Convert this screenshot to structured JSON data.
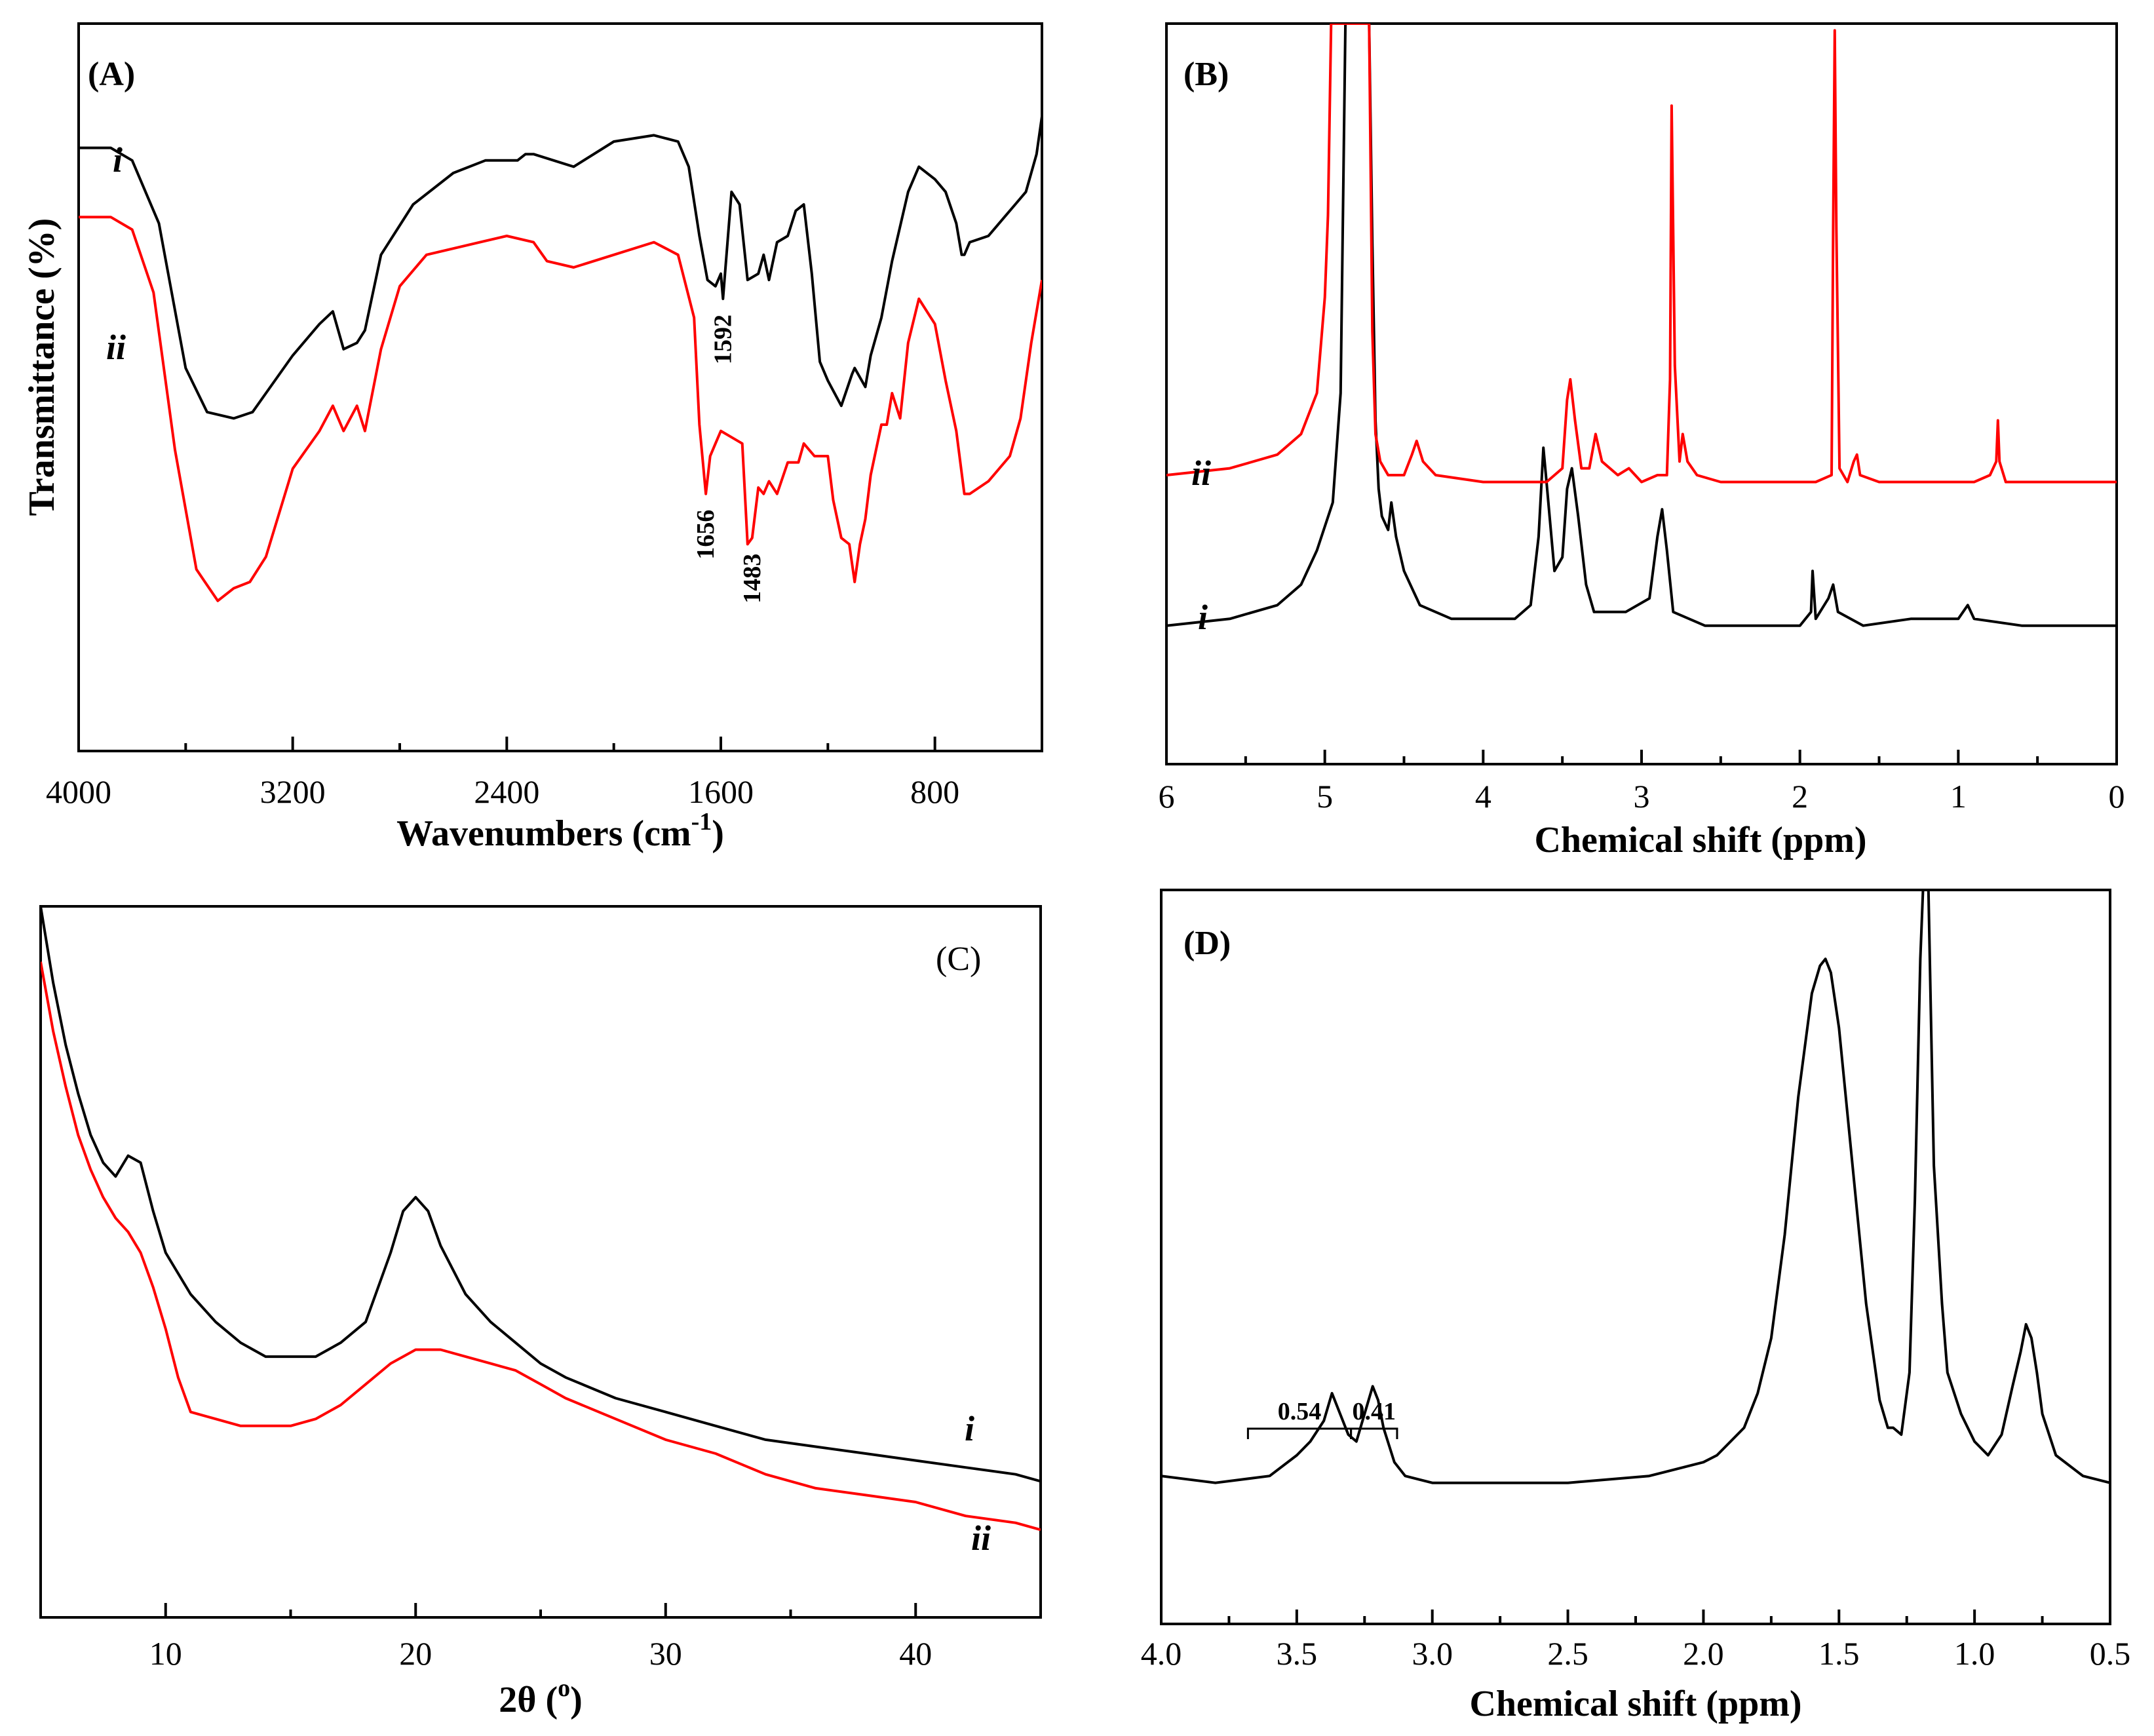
{
  "colors": {
    "series_i": "#000000",
    "series_ii": "#ff0000"
  },
  "chart_data": [
    {
      "id": "A",
      "panel_label": "(A)",
      "type": "line",
      "title": "",
      "xlabel": "Wavenumbers (cm-1)",
      "xlabel_main": "Wavenumbers (cm",
      "xlabel_sup": "-1",
      "xlabel_close": ")",
      "ylabel": "Transmittance (%)",
      "xlim": [
        4000,
        400
      ],
      "ylim": [
        0,
        100
      ],
      "xticks": [
        4000,
        3200,
        2400,
        1600,
        800
      ],
      "xtick_labels": [
        "4000",
        "3200",
        "2400",
        "1600",
        "800"
      ],
      "series": [
        {
          "name": "i",
          "color": "#000000",
          "x": [
            4000,
            3880,
            3800,
            3700,
            3600,
            3520,
            3420,
            3350,
            3300,
            3200,
            3100,
            3050,
            3010,
            2960,
            2930,
            2870,
            2750,
            2600,
            2480,
            2400,
            2360,
            2330,
            2300,
            2150,
            2000,
            1850,
            1760,
            1720,
            1680,
            1650,
            1620,
            1600,
            1592,
            1560,
            1530,
            1500,
            1460,
            1440,
            1420,
            1390,
            1350,
            1320,
            1290,
            1260,
            1230,
            1200,
            1150,
            1110,
            1100,
            1060,
            1040,
            1000,
            960,
            900,
            860,
            800,
            760,
            720,
            700,
            690,
            670,
            600,
            540,
            500,
            460,
            420,
            400
          ],
          "y": [
            89,
            89,
            87,
            77,
            54,
            47,
            46,
            47,
            50,
            56,
            61,
            63,
            57,
            58,
            60,
            72,
            80,
            85,
            87,
            87,
            87,
            88,
            88,
            86,
            90,
            91,
            90,
            86,
            75,
            68,
            67,
            69,
            65,
            82,
            80,
            68,
            69,
            72,
            68,
            74,
            75,
            79,
            80,
            69,
            55,
            52,
            48,
            53,
            54,
            51,
            56,
            62,
            71,
            82,
            86,
            84,
            82,
            77,
            72,
            72,
            74,
            75,
            78,
            80,
            82,
            88,
            94
          ]
        },
        {
          "name": "ii",
          "color": "#ff0000",
          "x": [
            4000,
            3880,
            3800,
            3720,
            3640,
            3560,
            3480,
            3420,
            3360,
            3300,
            3200,
            3100,
            3050,
            3010,
            2960,
            2930,
            2870,
            2800,
            2700,
            2600,
            2500,
            2400,
            2300,
            2250,
            2150,
            2000,
            1850,
            1760,
            1700,
            1680,
            1656,
            1640,
            1620,
            1600,
            1560,
            1520,
            1500,
            1483,
            1460,
            1440,
            1420,
            1390,
            1350,
            1310,
            1290,
            1250,
            1200,
            1180,
            1150,
            1120,
            1100,
            1080,
            1060,
            1040,
            1000,
            980,
            960,
            930,
            900,
            860,
            800,
            760,
            720,
            690,
            670,
            600,
            520,
            480,
            440,
            400
          ],
          "y": [
            78,
            78,
            76,
            66,
            41,
            22,
            17,
            19,
            20,
            24,
            38,
            44,
            48,
            44,
            48,
            44,
            57,
            67,
            72,
            73,
            74,
            75,
            74,
            71,
            70,
            72,
            74,
            72,
            62,
            45,
            34,
            40,
            42,
            44,
            43,
            42,
            26,
            27,
            35,
            34,
            36,
            34,
            39,
            39,
            42,
            40,
            40,
            33,
            27,
            26,
            20,
            26,
            30,
            37,
            45,
            45,
            50,
            46,
            58,
            65,
            61,
            52,
            44,
            34,
            34,
            36,
            40,
            46,
            58,
            68
          ]
        }
      ],
      "annotations": [
        {
          "text": "1592",
          "x": 1592,
          "series": "i"
        },
        {
          "text": "1656",
          "x": 1656,
          "series": "ii"
        },
        {
          "text": "1483",
          "x": 1483,
          "series": "ii"
        }
      ]
    },
    {
      "id": "B",
      "panel_label": "(B)",
      "type": "line",
      "title": "",
      "xlabel": "Chemical shift (ppm)",
      "ylabel": "",
      "xlim": [
        6,
        0
      ],
      "ylim": [
        0,
        100
      ],
      "xticks": [
        6,
        5,
        4,
        3,
        2,
        1,
        0
      ],
      "xtick_labels": [
        "6",
        "5",
        "4",
        "3",
        "2",
        "1",
        "0"
      ],
      "series": [
        {
          "name": "i",
          "color": "#000000",
          "x": [
            6,
            5.6,
            5.3,
            5.15,
            5.05,
            4.95,
            4.9,
            4.87,
            4.85,
            4.82,
            4.78,
            4.75,
            4.72,
            4.7,
            4.68,
            4.66,
            4.64,
            4.6,
            4.58,
            4.55,
            4.5,
            4.4,
            4.2,
            4.0,
            3.8,
            3.7,
            3.65,
            3.62,
            3.6,
            3.55,
            3.5,
            3.47,
            3.44,
            3.4,
            3.35,
            3.3,
            3.1,
            2.95,
            2.9,
            2.87,
            2.84,
            2.8,
            2.6,
            2.3,
            2.0,
            1.93,
            1.92,
            1.9,
            1.82,
            1.79,
            1.76,
            1.6,
            1.3,
            1.0,
            0.94,
            0.9,
            0.6,
            0.3,
            0
          ],
          "y": [
            12,
            13,
            15,
            18,
            23,
            30,
            46,
            100,
            100,
            100,
            100,
            100,
            100,
            68,
            42,
            32,
            28,
            26,
            30,
            25,
            20,
            15,
            13,
            13,
            13,
            15,
            25,
            38,
            33,
            20,
            22,
            32,
            35,
            28,
            18,
            14,
            14,
            16,
            25,
            29,
            23,
            14,
            12,
            12,
            12,
            14,
            20,
            13,
            16,
            18,
            14,
            12,
            13,
            13,
            15,
            13,
            12,
            12,
            12
          ]
        },
        {
          "name": "ii",
          "color": "#ff0000",
          "x": [
            6,
            5.6,
            5.3,
            5.15,
            5.05,
            5.0,
            4.98,
            4.96,
            4.95,
            4.93,
            4.9,
            4.87,
            4.85,
            4.82,
            4.79,
            4.76,
            4.74,
            4.72,
            4.7,
            4.68,
            4.65,
            4.6,
            4.5,
            4.45,
            4.42,
            4.38,
            4.3,
            4.0,
            3.8,
            3.6,
            3.5,
            3.47,
            3.45,
            3.42,
            3.38,
            3.33,
            3.29,
            3.25,
            3.15,
            3.08,
            3.0,
            2.9,
            2.84,
            2.82,
            2.81,
            2.79,
            2.76,
            2.74,
            2.71,
            2.65,
            2.5,
            2.2,
            1.9,
            1.8,
            1.79,
            1.78,
            1.77,
            1.75,
            1.7,
            1.66,
            1.64,
            1.62,
            1.5,
            1.2,
            0.9,
            0.8,
            0.76,
            0.75,
            0.74,
            0.7,
            0.3,
            0
          ],
          "y": [
            34,
            35,
            37,
            40,
            46,
            60,
            72,
            100,
            100,
            100,
            100,
            100,
            100,
            100,
            100,
            100,
            100,
            100,
            55,
            40,
            36,
            34,
            34,
            37,
            39,
            36,
            34,
            33,
            33,
            33,
            35,
            45,
            48,
            42,
            35,
            35,
            40,
            36,
            34,
            35,
            33,
            34,
            34,
            48,
            88,
            50,
            36,
            40,
            36,
            34,
            33,
            33,
            33,
            34,
            70,
            99,
            70,
            35,
            33,
            36,
            37,
            34,
            33,
            33,
            33,
            34,
            36,
            42,
            36,
            33,
            33,
            33
          ]
        }
      ],
      "annotations": []
    },
    {
      "id": "C",
      "panel_label": "(C)",
      "type": "line",
      "title": "",
      "xlabel": "2θ (o)",
      "xlabel_main": "2θ  (",
      "xlabel_sup": "o",
      "xlabel_close": ")",
      "ylabel": "",
      "xlim": [
        5,
        45
      ],
      "ylim": [
        0,
        100
      ],
      "xticks": [
        10,
        20,
        30,
        40
      ],
      "xtick_labels": [
        "10",
        "20",
        "30",
        "40"
      ],
      "series": [
        {
          "name": "i",
          "color": "#000000",
          "x": [
            5,
            5.5,
            6,
            6.5,
            7,
            7.5,
            8,
            8.5,
            9,
            9.5,
            10,
            11,
            12,
            13,
            14,
            15,
            16,
            17,
            18,
            19,
            19.5,
            20,
            20.5,
            21,
            22,
            23,
            24,
            25,
            26,
            28,
            30,
            32,
            34,
            36,
            38,
            40,
            42,
            44,
            45
          ],
          "y": [
            100,
            89,
            80,
            73,
            67,
            63,
            61,
            64,
            63,
            56,
            50,
            44,
            40,
            37,
            35,
            35,
            35,
            37,
            40,
            50,
            56,
            58,
            56,
            51,
            44,
            40,
            37,
            34,
            32,
            29,
            27,
            25,
            23,
            22,
            21,
            20,
            19,
            18,
            17
          ]
        },
        {
          "name": "ii",
          "color": "#ff0000",
          "x": [
            5,
            5.5,
            6,
            6.5,
            7,
            7.5,
            8,
            8.5,
            9,
            9.5,
            10,
            10.5,
            11,
            12,
            13,
            14,
            15,
            16,
            17,
            18,
            19,
            20,
            21,
            22,
            23,
            24,
            25,
            26,
            28,
            30,
            32,
            34,
            36,
            38,
            40,
            42,
            44,
            45
          ],
          "y": [
            92,
            82,
            74,
            67,
            62,
            58,
            55,
            53,
            50,
            45,
            39,
            32,
            27,
            26,
            25,
            25,
            25,
            26,
            28,
            31,
            34,
            36,
            36,
            35,
            34,
            33,
            31,
            29,
            26,
            23,
            21,
            18,
            16,
            15,
            14,
            12,
            11,
            10
          ]
        }
      ],
      "annotations": []
    },
    {
      "id": "D",
      "panel_label": "(D)",
      "type": "line",
      "title": "",
      "xlabel": "Chemical shift (ppm)",
      "ylabel": "",
      "xlim": [
        4.0,
        0.5
      ],
      "ylim": [
        0,
        100
      ],
      "xticks": [
        4.0,
        3.5,
        3.0,
        2.5,
        2.0,
        1.5,
        1.0,
        0.5
      ],
      "xtick_labels": [
        "4.0",
        "3.5",
        "3.0",
        "2.5",
        "2.0",
        "1.5",
        "1.0",
        "0.5"
      ],
      "series": [
        {
          "name": "i",
          "color": "#000000",
          "x": [
            4.0,
            3.8,
            3.6,
            3.5,
            3.45,
            3.4,
            3.37,
            3.35,
            3.31,
            3.28,
            3.25,
            3.22,
            3.2,
            3.18,
            3.14,
            3.1,
            3.0,
            2.8,
            2.5,
            2.2,
            2.0,
            1.95,
            1.9,
            1.85,
            1.8,
            1.75,
            1.7,
            1.65,
            1.6,
            1.57,
            1.55,
            1.53,
            1.5,
            1.45,
            1.4,
            1.35,
            1.32,
            1.3,
            1.27,
            1.24,
            1.22,
            1.2,
            1.19,
            1.18,
            1.17,
            1.15,
            1.12,
            1.1,
            1.05,
            1.0,
            0.95,
            0.9,
            0.86,
            0.83,
            0.81,
            0.79,
            0.77,
            0.75,
            0.7,
            0.6,
            0.5
          ],
          "y": [
            15,
            14,
            15,
            18,
            20,
            23,
            27,
            25,
            21,
            20,
            24,
            28,
            26,
            22,
            17,
            15,
            14,
            14,
            14,
            15,
            17,
            18,
            20,
            22,
            27,
            35,
            50,
            70,
            85,
            89,
            90,
            88,
            80,
            60,
            40,
            26,
            22,
            22,
            21,
            30,
            55,
            90,
            100,
            100,
            100,
            60,
            40,
            30,
            24,
            20,
            18,
            21,
            28,
            33,
            37,
            35,
            30,
            24,
            18,
            15,
            14
          ]
        }
      ],
      "annotations": [
        {
          "text": "0.54",
          "x1": 3.68,
          "x2": 3.3
        },
        {
          "text": "0.41",
          "x1": 3.3,
          "x2": 3.13
        }
      ]
    }
  ]
}
